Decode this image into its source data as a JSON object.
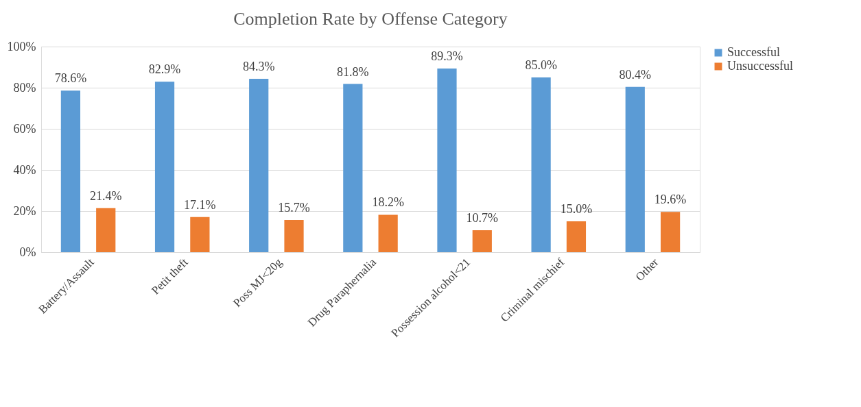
{
  "chart_data": {
    "type": "bar",
    "title": "Completion Rate by Offense Category",
    "categories": [
      "Battery/Assault",
      "Petit theft",
      "Poss MJ<20g",
      "Drug Paraphernalia",
      "Possession alcohol<21",
      "Criminal mischief",
      "Other"
    ],
    "series": [
      {
        "name": "Successful",
        "color": "#5b9bd5",
        "values": [
          78.6,
          82.9,
          84.3,
          81.8,
          89.3,
          85.0,
          80.4
        ],
        "value_labels": [
          "78.6%",
          "82.9%",
          "84.3%",
          "81.8%",
          "89.3%",
          "85.0%",
          "80.4%"
        ]
      },
      {
        "name": "Unsuccessful",
        "color": "#ed7d31",
        "values": [
          21.4,
          17.1,
          15.7,
          18.2,
          10.7,
          15.0,
          19.6
        ],
        "value_labels": [
          "21.4%",
          "17.1%",
          "15.7%",
          "18.2%",
          "10.7%",
          "15.0%",
          "19.6%"
        ]
      }
    ],
    "ylim": [
      0,
      100
    ],
    "yticks": [
      {
        "value": 0,
        "label": "0%"
      },
      {
        "value": 20,
        "label": "20%"
      },
      {
        "value": 40,
        "label": "40%"
      },
      {
        "value": 60,
        "label": "60%"
      },
      {
        "value": 80,
        "label": "80%"
      },
      {
        "value": 100,
        "label": "100%"
      }
    ],
    "grid": "y",
    "legend": "right"
  }
}
